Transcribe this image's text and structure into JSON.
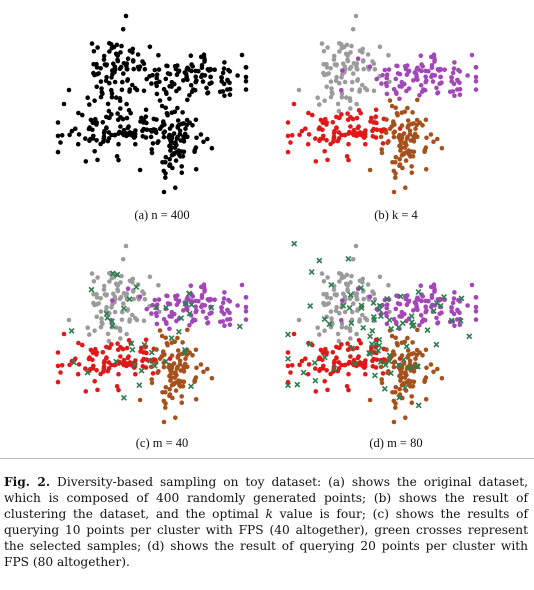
{
  "figure": {
    "label": "Fig. 2.",
    "caption_parts": [
      {
        "text": "Diversity-based sampling on toy dataset: (a) shows the original dataset, which is composed of 400 randomly generated points; (b) shows the result of clustering the dataset, and the optimal ",
        "italic": false
      },
      {
        "text": "k",
        "italic": true
      },
      {
        "text": " value is four; (c) shows the results of querying 10 points per cluster with FPS (40 altogether), green crosses represent the selected samples; (d) shows the result of querying 20 points per cluster with FPS (80 altogether).",
        "italic": false
      }
    ]
  },
  "colors": {
    "point": "#000000",
    "cluster_gray": "#9b9b9b",
    "cluster_purple": "#a347b8",
    "cluster_red": "#e01818",
    "cluster_brown": "#a5511c",
    "cross_green": "#2e7d4f"
  },
  "chart_data": [
    {
      "type": "scatter",
      "title": "(a) n = 400",
      "points": 400,
      "color_mode": "single",
      "crosses": 0
    },
    {
      "type": "scatter",
      "title": "(b) k = 4",
      "points": 400,
      "color_mode": "clusters",
      "clusters": 4,
      "crosses": 0
    },
    {
      "type": "scatter",
      "title": "(c) m = 40",
      "points": 400,
      "color_mode": "clusters",
      "clusters": 4,
      "crosses": 40
    },
    {
      "type": "scatter",
      "title": "(d) m = 80",
      "points": 400,
      "color_mode": "clusters",
      "clusters": 4,
      "crosses": 80
    }
  ]
}
